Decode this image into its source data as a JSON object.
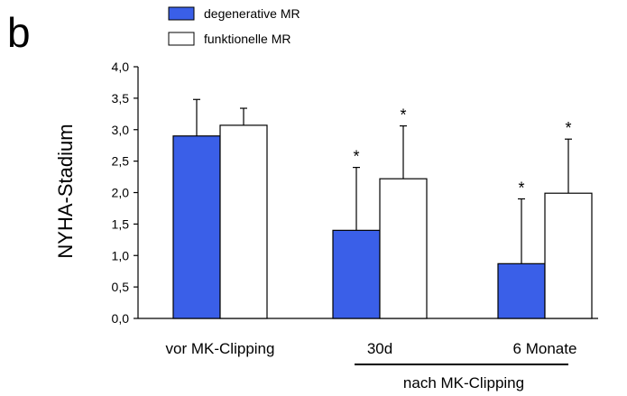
{
  "panel_label": "b",
  "chart_data": {
    "type": "bar",
    "categories": [
      "vor MK-Clipping",
      "30d",
      "6 Monate"
    ],
    "group_label": "nach MK-Clipping",
    "ylabel": "NYHA-Stadium",
    "ylim": [
      0,
      4.0
    ],
    "yticks": [
      "0,0",
      "0,5",
      "1,0",
      "1,5",
      "2,0",
      "2,5",
      "3,0",
      "3,5",
      "4,0"
    ],
    "grid": false,
    "legend_position": "top-left",
    "series": [
      {
        "name": "degenerative MR",
        "color": "#3a5fe8",
        "values": [
          2.9,
          1.4,
          0.87
        ],
        "errors": [
          0.58,
          1.0,
          1.03
        ],
        "significance": [
          "",
          "*",
          "*"
        ]
      },
      {
        "name": "funktionelle MR",
        "color": "#ffffff",
        "values": [
          3.07,
          2.22,
          1.99
        ],
        "errors": [
          0.27,
          0.84,
          0.86
        ],
        "significance": [
          "",
          "*",
          "*"
        ]
      }
    ]
  }
}
